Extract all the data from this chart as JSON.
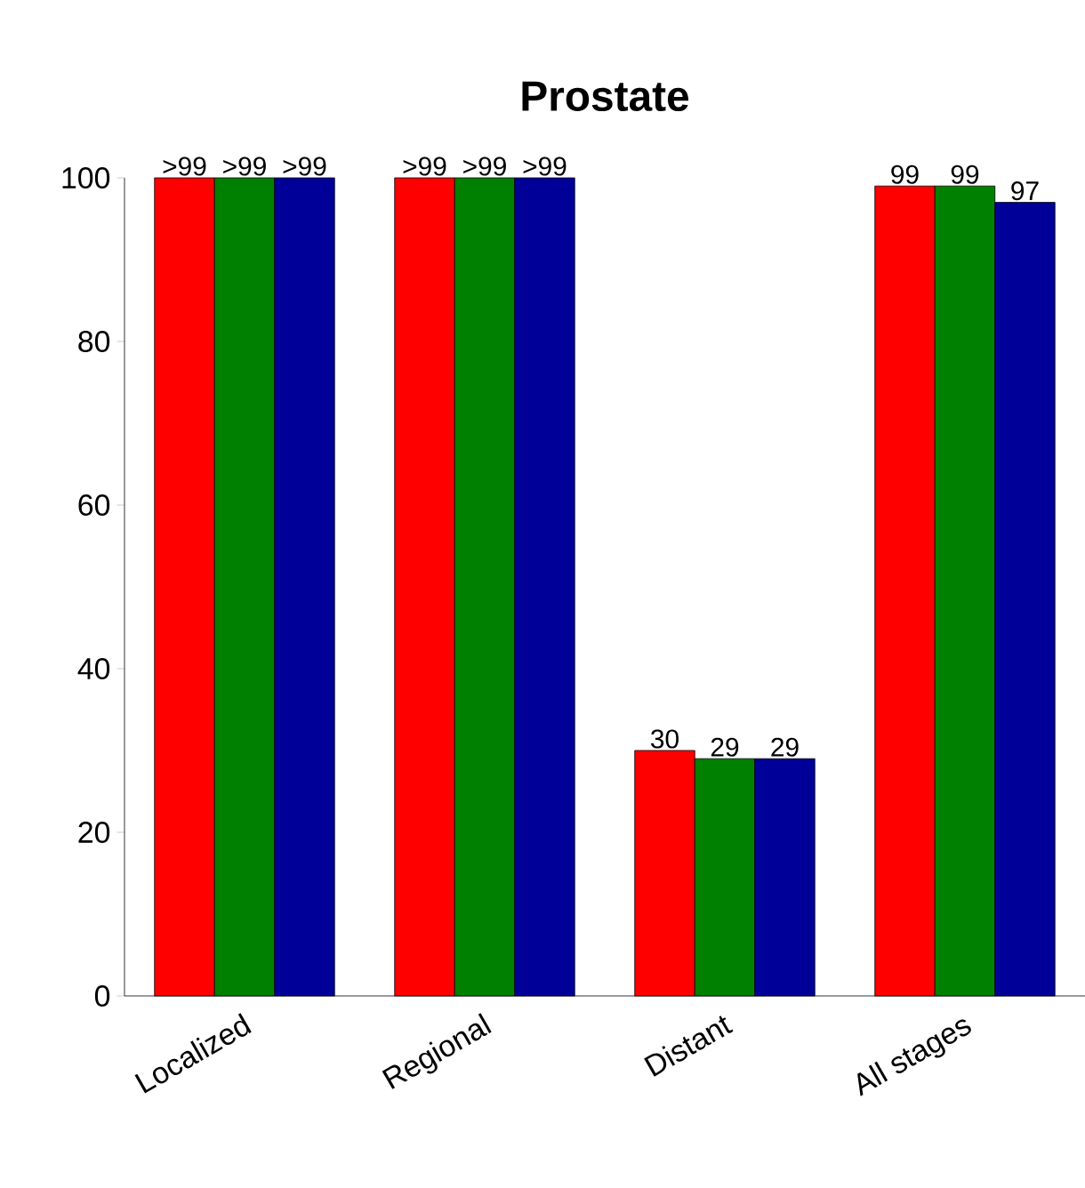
{
  "chart_data": {
    "type": "bar",
    "title": "Prostate",
    "categories": [
      "Localized",
      "Regional",
      "Distant",
      "All stages"
    ],
    "series": [
      {
        "color": "#ff0000",
        "values": [
          100,
          100,
          30,
          99
        ],
        "value_labels": [
          ">99",
          ">99",
          "30",
          "99"
        ]
      },
      {
        "color": "#008000",
        "values": [
          100,
          100,
          29,
          99
        ],
        "value_labels": [
          ">99",
          ">99",
          "29",
          "99"
        ]
      },
      {
        "color": "#000099",
        "values": [
          100,
          100,
          29,
          97
        ],
        "value_labels": [
          ">99",
          ">99",
          "29",
          "97"
        ]
      }
    ],
    "ylim": [
      0,
      100
    ],
    "yticks": [
      0,
      20,
      40,
      60,
      80,
      100
    ]
  }
}
